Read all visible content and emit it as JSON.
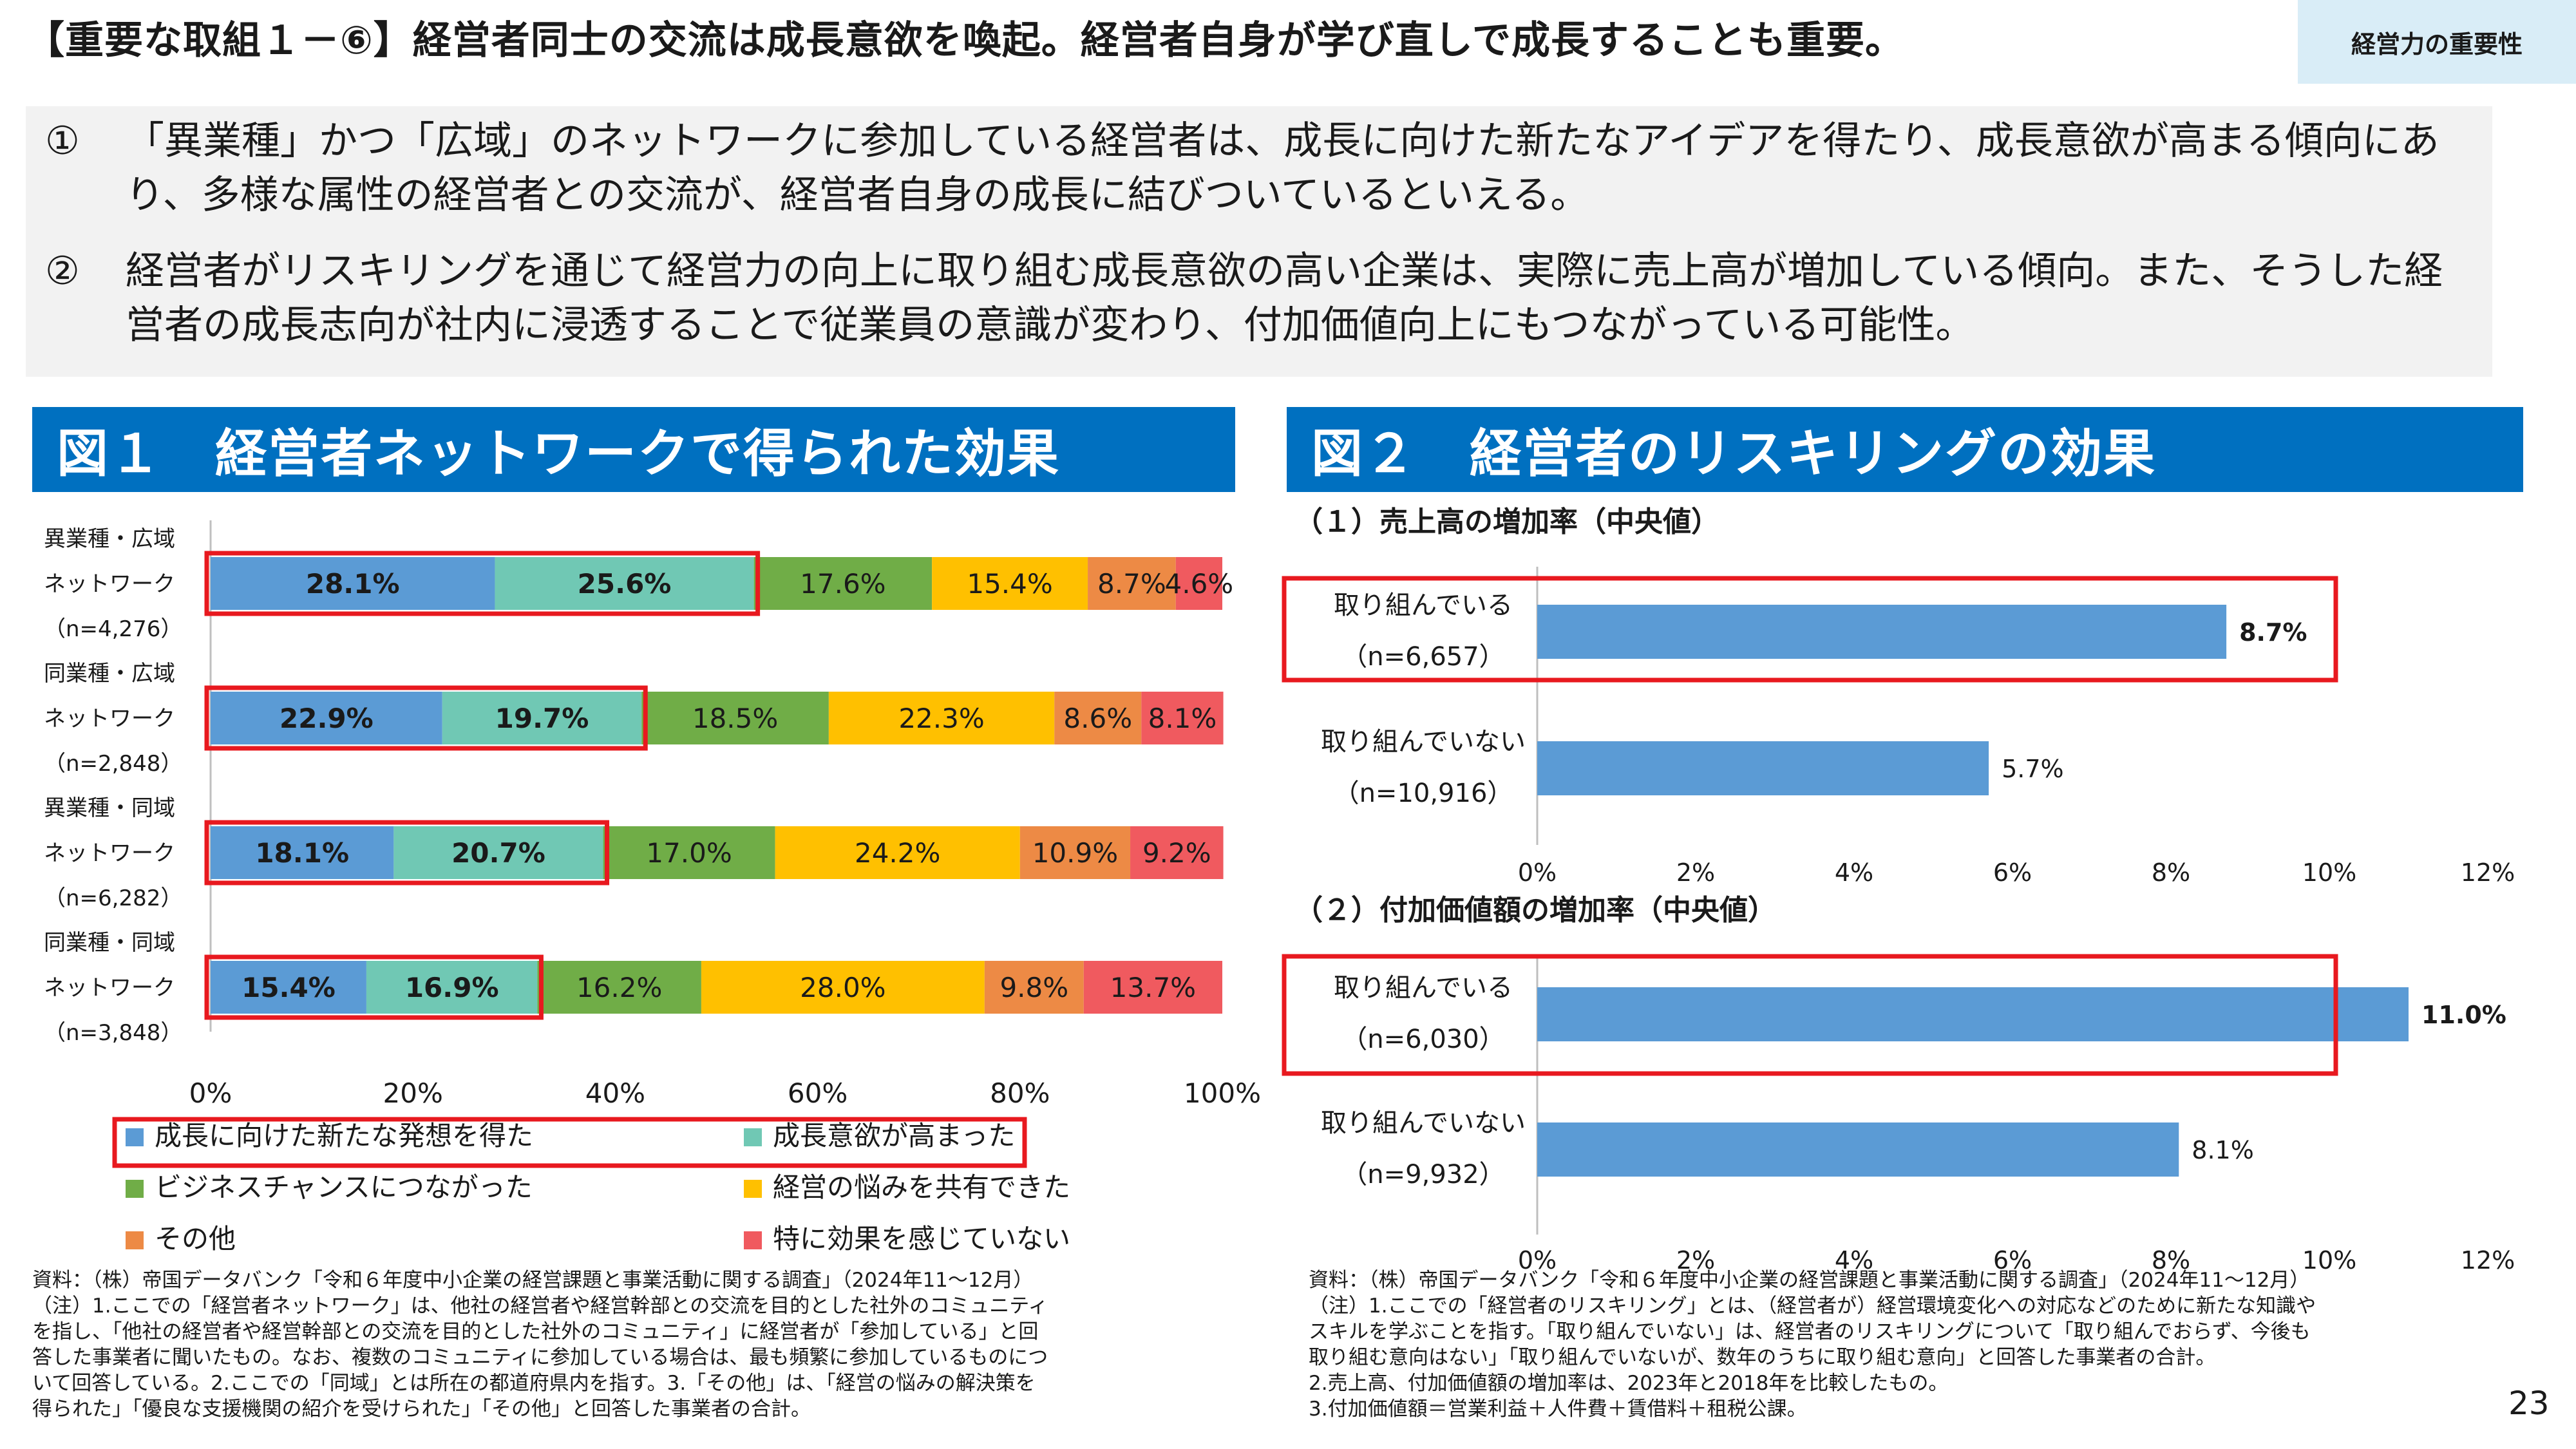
{
  "slide": {
    "title": "【重要な取組１－⑥】経営者同士の交流は成長意欲を喚起。経営者自身が学び直しで成長することも重要。",
    "section_tag": "経営力の重要性",
    "page_number": "23"
  },
  "summary": [
    {
      "num": "①",
      "text": "「異業種」かつ「広域」のネットワークに参加している経営者は、成長に向けた新たなアイデアを得たり、成長意欲が高まる傾向にあり、多様な属性の経営者との交流が、経営者自身の成長に結びついているといえる。"
    },
    {
      "num": "②",
      "text": "経営者がリスキリングを通じて経営力の向上に取り組む成長意欲の高い企業は、実際に売上高が増加している傾向。また、そうした経営者の成長志向が社内に浸透することで従業員の意識が変わり、付加価値向上にもつながっている可能性。"
    }
  ],
  "fig1": {
    "header": "図１　経営者ネットワークで得られた効果",
    "note": [
      "資料：（株）帝国データバンク「令和６年度中小企業の経営課題と事業活動に関する調査」（2024年11～12月）",
      "（注）1.ここでの「経営者ネットワーク」は、他社の経営者や経営幹部との交流を目的とした社外のコミュニティ",
      "を指し、「他社の経営者や経営幹部との交流を目的とした社外のコミュニティ」に経営者が「参加している」と回",
      "答した事業者に聞いたもの。なお、複数のコミュニティに参加している場合は、最も頻繁に参加しているものにつ",
      "いて回答している。2.ここでの「同域」とは所在の都道府県内を指す。3.「その他」は、「経営の悩みの解決策を",
      "得られた」「優良な支援機関の紹介を受けられた」「その他」と回答した事業者の合計。"
    ]
  },
  "fig2": {
    "header": "図２　経営者のリスキリングの効果",
    "note": [
      "資料：（株）帝国データバンク「令和６年度中小企業の経営課題と事業活動に関する調査」（2024年11～12月）",
      "（注）1.ここでの「経営者のリスキリング」とは、（経営者が）経営環境変化への対応などのために新たな知識や",
      "スキルを学ぶことを指す。「取り組んでいない」は、経営者のリスキリングについて「取り組んでおらず、今後も",
      "取り組む意向はない」「取り組んでいないが、数年のうちに取り組む意向」と回答した事業者の合計。",
      "2.売上高、付加価値額の増加率は、2023年と2018年を比較したもの。",
      "3.付加価値額＝営業利益＋人件費＋賃借料＋租税公課。"
    ]
  },
  "chart_data": [
    {
      "type": "bar",
      "orientation": "horizontal",
      "stacked": true,
      "categories": [
        [
          "異業種・広域",
          "ネットワーク",
          "（n=4,276）"
        ],
        [
          "同業種・広域",
          "ネットワーク",
          "（n=2,848）"
        ],
        [
          "異業種・同域",
          "ネットワーク",
          "（n=6,282）"
        ],
        [
          "同業種・同域",
          "ネットワーク",
          "（n=3,848）"
        ]
      ],
      "series": [
        {
          "name": "成長に向けた新たな発想を得た",
          "color": "#5b9bd5",
          "values": [
            28.1,
            22.9,
            18.1,
            15.4
          ],
          "labels": [
            "28.1%",
            "22.9%",
            "18.1%",
            "15.4%"
          ]
        },
        {
          "name": "成長意欲が高まった",
          "color": "#70c8b4",
          "values": [
            25.6,
            19.7,
            20.7,
            16.9
          ],
          "labels": [
            "25.6%",
            "19.7%",
            "20.7%",
            "16.9%"
          ]
        },
        {
          "name": "ビジネスチャンスにつながった",
          "color": "#70ad47",
          "values": [
            17.6,
            18.5,
            17.0,
            16.2
          ],
          "labels": [
            "17.6%",
            "18.5%",
            "17.0%",
            "16.2%"
          ]
        },
        {
          "name": "経営の悩みを共有できた",
          "color": "#ffc000",
          "values": [
            15.4,
            22.3,
            24.2,
            28.0
          ],
          "labels": [
            "15.4%",
            "22.3%",
            "24.2%",
            "28.0%"
          ]
        },
        {
          "name": "その他",
          "color": "#ed8a45",
          "values": [
            8.7,
            8.6,
            10.9,
            9.8
          ],
          "labels": [
            "8.7%",
            "8.6%",
            "10.9%",
            "9.8%"
          ]
        },
        {
          "name": "特に効果を感じていない",
          "color": "#f05a5f",
          "values": [
            4.6,
            8.1,
            9.2,
            13.7
          ],
          "labels": [
            "4.6%",
            "8.1%",
            "9.2%",
            "13.7%"
          ]
        }
      ],
      "xlim": [
        0,
        100
      ],
      "xticks": [
        "0%",
        "20%",
        "40%",
        "60%",
        "80%",
        "100%"
      ],
      "legend": "bottom"
    },
    {
      "type": "bar",
      "orientation": "horizontal",
      "title": "（１）売上高の増加率（中央値）",
      "categories": [
        [
          "取り組んでいる",
          "（n=6,657）"
        ],
        [
          "取り組んでいない",
          "（n=10,916）"
        ]
      ],
      "values": [
        8.7,
        5.7
      ],
      "labels": [
        "8.7%",
        "5.7%"
      ],
      "color": "#5b9bd5",
      "xlim": [
        0,
        12
      ],
      "xticks": [
        "0%",
        "2%",
        "4%",
        "6%",
        "8%",
        "10%",
        "12%"
      ]
    },
    {
      "type": "bar",
      "orientation": "horizontal",
      "title": "（２）付加価値額の増加率（中央値）",
      "categories": [
        [
          "取り組んでいる",
          "（n=6,030）"
        ],
        [
          "取り組んでいない",
          "（n=9,932）"
        ]
      ],
      "values": [
        11.0,
        8.1
      ],
      "labels": [
        "11.0%",
        "8.1%"
      ],
      "color": "#5b9bd5",
      "xlim": [
        0,
        12
      ],
      "xticks": [
        "0%",
        "2%",
        "4%",
        "6%",
        "8%",
        "10%",
        "12%"
      ]
    }
  ]
}
